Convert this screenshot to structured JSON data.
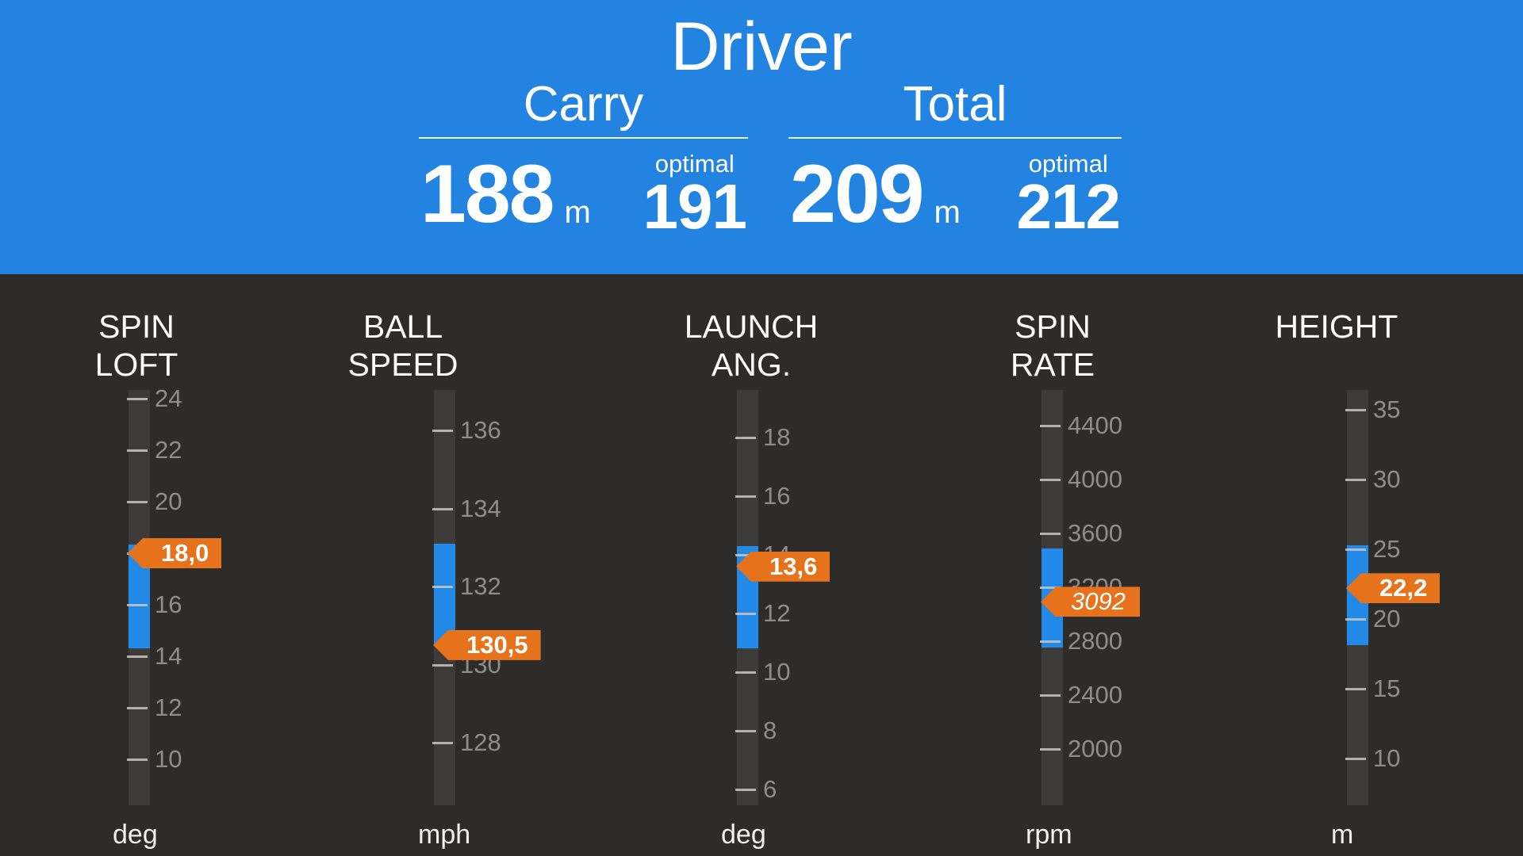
{
  "header": {
    "club": "Driver",
    "metrics": [
      {
        "name": "carry",
        "label": "Carry",
        "value": "188",
        "unit": "m",
        "optimal_label": "optimal",
        "optimal_value": "191"
      },
      {
        "name": "total",
        "label": "Total",
        "value": "209",
        "unit": "m",
        "optimal_label": "optimal",
        "optimal_value": "212"
      }
    ]
  },
  "gauges": [
    {
      "name": "spin-loft",
      "title_lines": [
        "SPIN",
        "LOFT"
      ],
      "unit": "deg",
      "value": 18.0,
      "value_label": "18,0",
      "value_italic": false,
      "ticks": [
        24,
        22,
        20,
        18,
        16,
        14,
        12,
        10
      ],
      "optimal_range": {
        "low": 14.3,
        "high": 18.35
      }
    },
    {
      "name": "ball-speed",
      "title_lines": [
        "BALL",
        "SPEED"
      ],
      "unit": "mph",
      "value": 130.5,
      "value_label": "130,5",
      "value_italic": false,
      "ticks": [
        136,
        134,
        132,
        130,
        128
      ],
      "optimal_range": {
        "low": 130.5,
        "high": 133.1
      }
    },
    {
      "name": "launch-angle",
      "title_lines": [
        "LAUNCH",
        "ANG."
      ],
      "unit": "deg",
      "value": 13.6,
      "value_label": "13,6",
      "value_italic": false,
      "ticks": [
        18,
        16,
        14,
        12,
        10,
        8,
        6
      ],
      "optimal_range": {
        "low": 10.8,
        "high": 14.3
      }
    },
    {
      "name": "spin-rate",
      "title_lines": [
        "SPIN",
        "RATE"
      ],
      "unit": "rpm",
      "value": 3092,
      "value_label": "3092",
      "value_italic": true,
      "ticks": [
        4400,
        4000,
        3600,
        3200,
        2800,
        2400,
        2000
      ],
      "optimal_range": {
        "low": 2750,
        "high": 3490
      }
    },
    {
      "name": "height",
      "title_lines": [
        "HEIGHT"
      ],
      "unit": "m",
      "value": 22.2,
      "value_label": "22,2",
      "value_italic": false,
      "ticks": [
        35,
        30,
        25,
        20,
        15,
        10
      ],
      "optimal_range": {
        "low": 18.1,
        "high": 25.3
      }
    }
  ],
  "colors": {
    "header_blue": "#2283e1",
    "optimal_band_blue": "#2289e7",
    "pointer_orange": "#e6731c",
    "background_dark": "#2d2c2b",
    "track_gray": "#3c3b3a",
    "tick_line": "#c9c7c4",
    "tick_label": "#8f8d8b",
    "text_white": "#ffffff"
  }
}
